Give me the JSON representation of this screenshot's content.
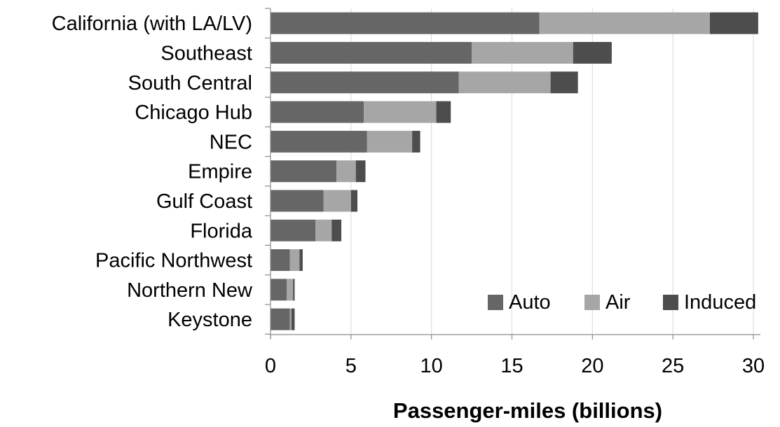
{
  "chart_data": {
    "type": "bar",
    "orientation": "horizontal",
    "stacked": true,
    "categories": [
      "California (with LA/LV)",
      "Southeast",
      "South Central",
      "Chicago Hub",
      "NEC",
      "Empire",
      "Gulf Coast",
      "Florida",
      "Pacific Northwest",
      "Northern New",
      "Keystone"
    ],
    "series": [
      {
        "name": "Auto",
        "color": "#666666",
        "values": [
          16.7,
          12.5,
          11.7,
          5.8,
          6.0,
          4.1,
          3.3,
          2.8,
          1.2,
          1.0,
          1.2
        ]
      },
      {
        "name": "Air",
        "color": "#a6a6a6",
        "values": [
          10.6,
          6.3,
          5.7,
          4.5,
          2.8,
          1.2,
          1.7,
          1.0,
          0.6,
          0.4,
          0.1
        ]
      },
      {
        "name": "Induced",
        "color": "#4d4d4d",
        "values": [
          3.0,
          2.4,
          1.7,
          0.9,
          0.5,
          0.6,
          0.4,
          0.6,
          0.2,
          0.1,
          0.2
        ]
      }
    ],
    "xlabel": "Passenger-miles (billions)",
    "ylabel": "",
    "xlim": [
      0,
      30
    ],
    "xticks": [
      0,
      5,
      10,
      15,
      20,
      25,
      30
    ],
    "grid": "vertical",
    "legend_position": "bottom-right"
  }
}
